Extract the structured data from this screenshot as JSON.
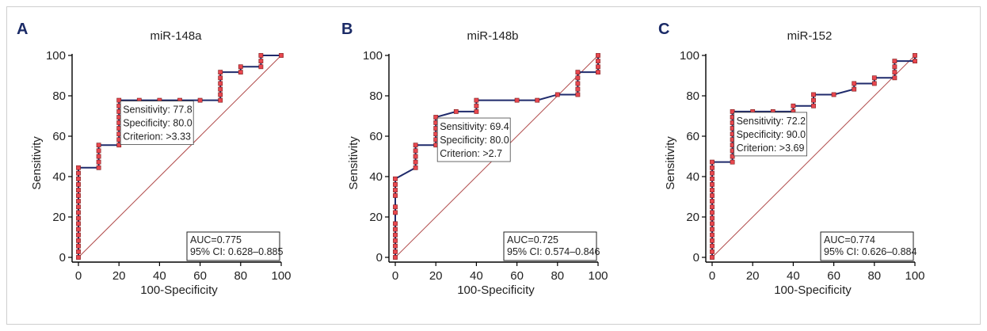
{
  "chart_data": [
    {
      "type": "line",
      "panel_label": "A",
      "title": "miR-148a",
      "xlabel": "100-Specificity",
      "ylabel": "Sensitivity",
      "xlim": [
        0,
        100
      ],
      "ylim": [
        0,
        100
      ],
      "ticks": [
        0,
        20,
        40,
        60,
        80,
        100
      ],
      "roc": [
        [
          0,
          0
        ],
        [
          0,
          2.8
        ],
        [
          0,
          5.6
        ],
        [
          0,
          8.3
        ],
        [
          0,
          11.1
        ],
        [
          0,
          13.9
        ],
        [
          0,
          16.7
        ],
        [
          0,
          19.4
        ],
        [
          0,
          22.2
        ],
        [
          0,
          25
        ],
        [
          0,
          27.8
        ],
        [
          0,
          30.6
        ],
        [
          0,
          33.3
        ],
        [
          0,
          36.1
        ],
        [
          0,
          38.9
        ],
        [
          0,
          41.7
        ],
        [
          0,
          44.4
        ],
        [
          10,
          44.4
        ],
        [
          10,
          47.2
        ],
        [
          10,
          50
        ],
        [
          10,
          52.8
        ],
        [
          10,
          55.6
        ],
        [
          20,
          55.6
        ],
        [
          20,
          58.3
        ],
        [
          20,
          61.1
        ],
        [
          20,
          63.9
        ],
        [
          20,
          66.7
        ],
        [
          20,
          69.4
        ],
        [
          20,
          72.2
        ],
        [
          20,
          75
        ],
        [
          20,
          77.8
        ],
        [
          30,
          77.8
        ],
        [
          40,
          77.8
        ],
        [
          50,
          77.8
        ],
        [
          60,
          77.8
        ],
        [
          70,
          77.8
        ],
        [
          70,
          80.6
        ],
        [
          70,
          83.3
        ],
        [
          70,
          86.1
        ],
        [
          70,
          88.9
        ],
        [
          70,
          91.7
        ],
        [
          80,
          91.7
        ],
        [
          80,
          94.4
        ],
        [
          90,
          94.4
        ],
        [
          90,
          97.2
        ],
        [
          90,
          100
        ],
        [
          100,
          100
        ]
      ],
      "annotation": [
        "Sensitivity: 77.8",
        "Specificity: 80.0",
        "Criterion: >3.33"
      ],
      "stats": [
        "AUC=0.775",
        "95% CI: 0.628–0.885"
      ],
      "colors": {
        "roc_line": "#1f2a6b",
        "marker": "#e8474f",
        "diagonal": "#b04a4a"
      }
    },
    {
      "type": "line",
      "panel_label": "B",
      "title": "miR-148b",
      "xlabel": "100-Specificity",
      "ylabel": "Sensitivity",
      "xlim": [
        0,
        100
      ],
      "ylim": [
        0,
        100
      ],
      "ticks": [
        0,
        20,
        40,
        60,
        80,
        100
      ],
      "roc": [
        [
          0,
          0
        ],
        [
          0,
          2.8
        ],
        [
          0,
          5.6
        ],
        [
          0,
          8.3
        ],
        [
          0,
          11.1
        ],
        [
          0,
          13.9
        ],
        [
          0,
          16.7
        ],
        [
          0,
          22.2
        ],
        [
          0,
          25
        ],
        [
          0,
          30.6
        ],
        [
          0,
          33.3
        ],
        [
          0,
          36.1
        ],
        [
          0,
          38.9
        ],
        [
          10,
          44.4
        ],
        [
          10,
          47.2
        ],
        [
          10,
          50
        ],
        [
          10,
          52.8
        ],
        [
          10,
          55.6
        ],
        [
          20,
          55.6
        ],
        [
          20,
          58.3
        ],
        [
          20,
          61.1
        ],
        [
          20,
          63.9
        ],
        [
          20,
          66.7
        ],
        [
          20,
          69.4
        ],
        [
          30,
          72.2
        ],
        [
          40,
          72.2
        ],
        [
          40,
          75
        ],
        [
          40,
          77.8
        ],
        [
          60,
          77.8
        ],
        [
          70,
          77.8
        ],
        [
          80,
          80.6
        ],
        [
          90,
          80.6
        ],
        [
          90,
          83.3
        ],
        [
          90,
          86.1
        ],
        [
          90,
          88.9
        ],
        [
          90,
          91.7
        ],
        [
          100,
          91.7
        ],
        [
          100,
          94.4
        ],
        [
          100,
          97.2
        ],
        [
          100,
          100
        ]
      ],
      "annotation": [
        "Sensitivity: 69.4",
        "Specificity: 80.0",
        "Criterion: >2.7"
      ],
      "stats": [
        "AUC=0.725",
        "95% CI: 0.574–0.846"
      ],
      "colors": {
        "roc_line": "#1f2a6b",
        "marker": "#e8474f",
        "diagonal": "#b04a4a"
      }
    },
    {
      "type": "line",
      "panel_label": "C",
      "title": "miR-152",
      "xlabel": "100-Specificity",
      "ylabel": "Sensitivity",
      "xlim": [
        0,
        100
      ],
      "ylim": [
        0,
        100
      ],
      "ticks": [
        0,
        20,
        40,
        60,
        80,
        100
      ],
      "roc": [
        [
          0,
          0
        ],
        [
          0,
          2.8
        ],
        [
          0,
          5.6
        ],
        [
          0,
          8.3
        ],
        [
          0,
          11.1
        ],
        [
          0,
          13.9
        ],
        [
          0,
          16.7
        ],
        [
          0,
          19.4
        ],
        [
          0,
          22.2
        ],
        [
          0,
          25
        ],
        [
          0,
          27.8
        ],
        [
          0,
          30.6
        ],
        [
          0,
          33.3
        ],
        [
          0,
          36.1
        ],
        [
          0,
          38.9
        ],
        [
          0,
          41.7
        ],
        [
          0,
          44.4
        ],
        [
          0,
          47.2
        ],
        [
          10,
          47.2
        ],
        [
          10,
          50
        ],
        [
          10,
          52.8
        ],
        [
          10,
          55.6
        ],
        [
          10,
          58.3
        ],
        [
          10,
          61.1
        ],
        [
          10,
          63.9
        ],
        [
          10,
          66.7
        ],
        [
          10,
          69.4
        ],
        [
          10,
          72.2
        ],
        [
          20,
          72.2
        ],
        [
          30,
          72.2
        ],
        [
          40,
          72.2
        ],
        [
          40,
          75
        ],
        [
          50,
          75
        ],
        [
          50,
          77.8
        ],
        [
          50,
          80.6
        ],
        [
          60,
          80.6
        ],
        [
          70,
          83.3
        ],
        [
          70,
          86.1
        ],
        [
          80,
          86.1
        ],
        [
          80,
          88.9
        ],
        [
          90,
          88.9
        ],
        [
          90,
          91.7
        ],
        [
          90,
          94.4
        ],
        [
          90,
          97.2
        ],
        [
          100,
          97.2
        ],
        [
          100,
          100
        ]
      ],
      "annotation": [
        "Sensitivity: 72.2",
        "Specificity: 90.0",
        "Criterion: >3.69"
      ],
      "stats": [
        "AUC=0.774",
        "95% CI: 0.626–0.884"
      ],
      "colors": {
        "roc_line": "#1f2a6b",
        "marker": "#e8474f",
        "diagonal": "#b04a4a"
      }
    }
  ]
}
